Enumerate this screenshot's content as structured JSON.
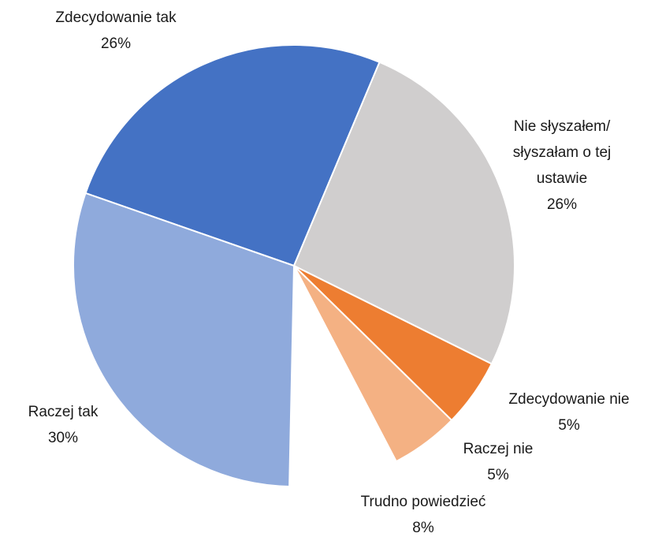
{
  "chart_data": {
    "type": "pie",
    "categories": [
      "Zdecydowanie tak",
      "Nie słyszałem/ słyszałam o tej ustawie",
      "Zdecydowanie nie",
      "Raczej nie",
      "Trudno powiedzieć",
      "Raczej tak"
    ],
    "values": [
      26,
      26,
      5,
      5,
      8,
      30
    ],
    "value_labels": [
      "26%",
      "26%",
      "5%",
      "5%",
      "8%",
      "30%"
    ],
    "colors": [
      "#4472c4",
      "#d0cece",
      "#ed7d31",
      "#f4b183",
      "#ffffff",
      "#8faadc"
    ]
  }
}
